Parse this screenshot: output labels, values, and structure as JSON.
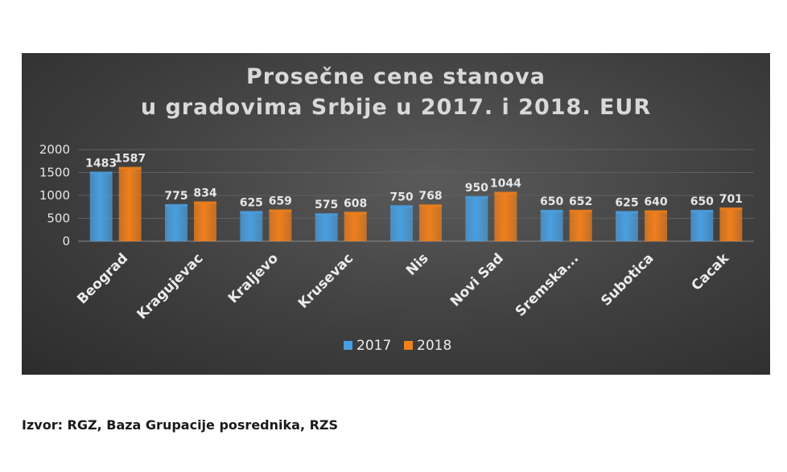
{
  "chart_data": {
    "type": "bar",
    "title_line1": "Prosečne cene stanova",
    "title_line2": "u gradovima Srbije u 2017. i 2018. EUR",
    "categories": [
      "Beograd",
      "Kragujevac",
      "Kraljevo",
      "Krusevac",
      "Nis",
      "Novi Sad",
      "Sremska...",
      "Subotica",
      "Cacak"
    ],
    "series": [
      {
        "name": "2017",
        "values": [
          1483,
          775,
          625,
          575,
          750,
          950,
          650,
          625,
          650
        ],
        "color": "#4a9fe0"
      },
      {
        "name": "2018",
        "values": [
          1587,
          834,
          659,
          608,
          768,
          1044,
          652,
          640,
          701
        ],
        "color": "#f07f1c"
      }
    ],
    "yticks": [
      0,
      500,
      1000,
      1500,
      2000
    ],
    "ylim": [
      0,
      2000
    ],
    "legend_position": "bottom",
    "grid": true
  },
  "source": "Izvor: RGZ, Baza Grupacije posrednika, RZS"
}
